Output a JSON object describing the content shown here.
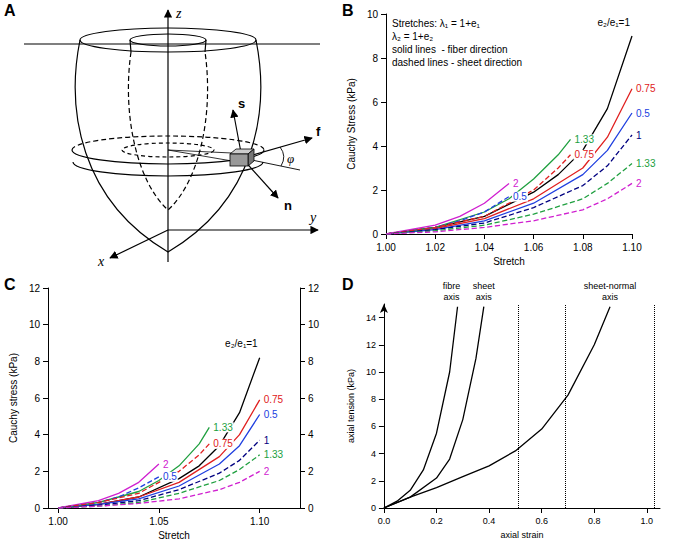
{
  "diagram": {
    "panel": "A",
    "axes": [
      "x",
      "y",
      "z"
    ],
    "vectors": [
      "s",
      "f",
      "n"
    ],
    "angle": "φ"
  },
  "chart_data": [
    {
      "panel": "B",
      "type": "line",
      "xlabel": "Stretch",
      "ylabel": "Cauchy Stress (kPa)",
      "xlim": [
        1,
        1.1
      ],
      "xticks": [
        {
          "value": 1,
          "label": "1.00"
        },
        1.02,
        1.04,
        1.06,
        1.08,
        {
          "value": 1.1,
          "label": "1.10"
        }
      ],
      "ylim": [
        0,
        10
      ],
      "yticks": [
        0,
        2,
        4,
        6,
        8,
        10
      ],
      "grid": false,
      "annotations": [
        "Stretches: λ₁ = 1+e₁",
        "λ₂ = 1+e₂",
        "solid lines  - fiber direction",
        "dashed lines - sheet direction"
      ],
      "series": [
        {
          "name": "e₂/e₁=1",
          "color": "#000000",
          "line_style": "solid",
          "x": [
            1,
            1.02,
            1.04,
            1.06,
            1.07,
            1.08,
            1.09,
            1.1
          ],
          "values": [
            0,
            0.3,
            0.8,
            1.9,
            2.7,
            3.8,
            5.7,
            9.0
          ]
        },
        {
          "name": "0.75",
          "color": "#e02020",
          "line_style": "solid",
          "x": [
            1,
            1.02,
            1.04,
            1.06,
            1.08,
            1.09,
            1.1
          ],
          "values": [
            0,
            0.25,
            0.7,
            1.6,
            3.0,
            4.4,
            6.6
          ]
        },
        {
          "name": "0.5",
          "color": "#2040e0",
          "line_style": "solid",
          "x": [
            1,
            1.02,
            1.04,
            1.06,
            1.08,
            1.09,
            1.1
          ],
          "values": [
            0,
            0.2,
            0.6,
            1.4,
            2.7,
            3.8,
            5.5
          ]
        },
        {
          "name": "1.33",
          "color": "#20a040",
          "line_style": "solid",
          "x": [
            1,
            1.02,
            1.04,
            1.05,
            1.06,
            1.07,
            1.075
          ],
          "values": [
            0,
            0.3,
            1.0,
            1.6,
            2.5,
            3.6,
            4.3
          ]
        },
        {
          "name": "2",
          "color": "#d020d0",
          "line_style": "solid",
          "x": [
            1,
            1.02,
            1.03,
            1.04,
            1.05
          ],
          "values": [
            0,
            0.4,
            0.8,
            1.4,
            2.3
          ]
        },
        {
          "name": "0.5",
          "color": "#2040e0",
          "line_style": "dashed",
          "x": [
            1,
            1.02,
            1.03,
            1.04,
            1.05
          ],
          "values": [
            0,
            0.3,
            0.6,
            1.0,
            1.7
          ]
        },
        {
          "name": "0.75",
          "color": "#e02020",
          "line_style": "dashed",
          "x": [
            1,
            1.02,
            1.04,
            1.06,
            1.07,
            1.075
          ],
          "values": [
            0,
            0.3,
            0.8,
            2.0,
            3.0,
            3.6
          ]
        },
        {
          "name": "1",
          "color": "#000080",
          "line_style": "dashed",
          "x": [
            1,
            1.02,
            1.04,
            1.06,
            1.08,
            1.09,
            1.1
          ],
          "values": [
            0,
            0.2,
            0.5,
            1.2,
            2.2,
            3.1,
            4.5
          ]
        },
        {
          "name": "1.33",
          "color": "#20a040",
          "line_style": "dashed",
          "x": [
            1,
            1.02,
            1.04,
            1.06,
            1.08,
            1.09,
            1.1
          ],
          "values": [
            0,
            0.15,
            0.4,
            0.9,
            1.6,
            2.3,
            3.2
          ]
        },
        {
          "name": "2",
          "color": "#d020d0",
          "line_style": "dashed",
          "x": [
            1,
            1.02,
            1.04,
            1.06,
            1.08,
            1.09,
            1.1
          ],
          "values": [
            0,
            0.1,
            0.3,
            0.6,
            1.1,
            1.6,
            2.3
          ]
        }
      ]
    },
    {
      "panel": "C",
      "type": "line",
      "xlabel": "Stretch",
      "ylabel": "Cauchy stress (kPa)",
      "xlim": [
        0.995,
        1.12
      ],
      "xticks": [
        {
          "value": 1,
          "label": "1.00"
        },
        1.05,
        {
          "value": 1.1,
          "label": "1.10"
        }
      ],
      "ylim": [
        0,
        12
      ],
      "yticks": [
        0,
        2,
        4,
        6,
        8,
        10,
        12
      ],
      "y2lim": [
        0,
        12
      ],
      "y2ticks": [
        0,
        2,
        4,
        6,
        8,
        10,
        12
      ],
      "grid": false,
      "series": [
        {
          "name": "e₂/e₁=1",
          "color": "#000000",
          "line_style": "solid",
          "x": [
            1,
            1.02,
            1.04,
            1.06,
            1.07,
            1.08,
            1.09,
            1.1
          ],
          "values": [
            0,
            0.2,
            0.6,
            1.6,
            2.3,
            3.4,
            5.2,
            8.2
          ]
        },
        {
          "name": "0.75",
          "color": "#e02020",
          "line_style": "solid",
          "x": [
            1,
            1.02,
            1.04,
            1.06,
            1.08,
            1.09,
            1.1
          ],
          "values": [
            0,
            0.2,
            0.6,
            1.4,
            2.8,
            4.0,
            5.9
          ]
        },
        {
          "name": "0.5",
          "color": "#2040e0",
          "line_style": "solid",
          "x": [
            1,
            1.02,
            1.04,
            1.06,
            1.08,
            1.09,
            1.1
          ],
          "values": [
            0,
            0.2,
            0.5,
            1.2,
            2.4,
            3.4,
            5.1
          ]
        },
        {
          "name": "1.33",
          "color": "#20a040",
          "line_style": "solid",
          "x": [
            1,
            1.02,
            1.04,
            1.05,
            1.06,
            1.07,
            1.075
          ],
          "values": [
            0,
            0.3,
            0.9,
            1.5,
            2.3,
            3.5,
            4.4
          ]
        },
        {
          "name": "2",
          "color": "#d020d0",
          "line_style": "solid",
          "x": [
            1,
            1.02,
            1.03,
            1.04,
            1.05
          ],
          "values": [
            0,
            0.4,
            0.8,
            1.4,
            2.4
          ]
        },
        {
          "name": "0.5",
          "color": "#2040e0",
          "line_style": "dashed",
          "x": [
            1,
            1.02,
            1.03,
            1.04,
            1.05
          ],
          "values": [
            0,
            0.3,
            0.6,
            1.1,
            1.7
          ]
        },
        {
          "name": "0.75",
          "color": "#e02020",
          "line_style": "dashed",
          "x": [
            1,
            1.02,
            1.04,
            1.06,
            1.07,
            1.075
          ],
          "values": [
            0,
            0.3,
            0.8,
            2.0,
            2.9,
            3.5
          ]
        },
        {
          "name": "1",
          "color": "#000080",
          "line_style": "dashed",
          "x": [
            1,
            1.02,
            1.04,
            1.06,
            1.08,
            1.09,
            1.1
          ],
          "values": [
            0,
            0.15,
            0.4,
            1.0,
            1.9,
            2.6,
            3.7
          ]
        },
        {
          "name": "1.33",
          "color": "#20a040",
          "line_style": "dashed",
          "x": [
            1,
            1.02,
            1.04,
            1.06,
            1.08,
            1.09,
            1.1
          ],
          "values": [
            0,
            0.1,
            0.3,
            0.8,
            1.5,
            2.1,
            2.9
          ]
        },
        {
          "name": "2",
          "color": "#d020d0",
          "line_style": "dashed",
          "x": [
            1,
            1.02,
            1.04,
            1.06,
            1.08,
            1.09,
            1.1
          ],
          "values": [
            0,
            0.1,
            0.25,
            0.5,
            1.0,
            1.4,
            2.0
          ]
        }
      ]
    },
    {
      "panel": "D",
      "type": "line",
      "xlabel": "axial strain",
      "ylabel": "axial tension (kPa)",
      "xlim": [
        0,
        1.05
      ],
      "xticks": [
        {
          "value": 0,
          "label": "0.0"
        },
        0.2,
        0.4,
        0.6,
        0.8,
        {
          "value": 1,
          "label": "1.0"
        }
      ],
      "ylim": [
        0,
        15
      ],
      "yticks": [
        0,
        2,
        4,
        6,
        8,
        10,
        12,
        14
      ],
      "grid": false,
      "series": [
        {
          "name": "fibre axis",
          "color": "#000000",
          "line_style": "solid",
          "x": [
            0,
            0.05,
            0.1,
            0.15,
            0.2,
            0.25,
            0.28
          ],
          "values": [
            0,
            0.5,
            1.3,
            2.8,
            5.5,
            10,
            14.8
          ]
        },
        {
          "name": "sheet axis",
          "color": "#000000",
          "line_style": "solid",
          "x": [
            0,
            0.1,
            0.2,
            0.25,
            0.3,
            0.35,
            0.38
          ],
          "values": [
            0,
            0.8,
            2.2,
            3.6,
            6.5,
            11,
            14.8
          ]
        },
        {
          "name": "sheet-normal axis",
          "color": "#000000",
          "line_style": "solid",
          "x": [
            0,
            0.1,
            0.2,
            0.3,
            0.4,
            0.5,
            0.6,
            0.7,
            0.8,
            0.86
          ],
          "values": [
            0,
            0.8,
            1.5,
            2.3,
            3.1,
            4.2,
            5.8,
            8.3,
            12.0,
            14.8
          ]
        },
        {
          "type": "vline",
          "color": "#000000",
          "line_style": "dotted",
          "values": [
            0.51,
            0.69,
            1.03
          ]
        }
      ]
    }
  ]
}
